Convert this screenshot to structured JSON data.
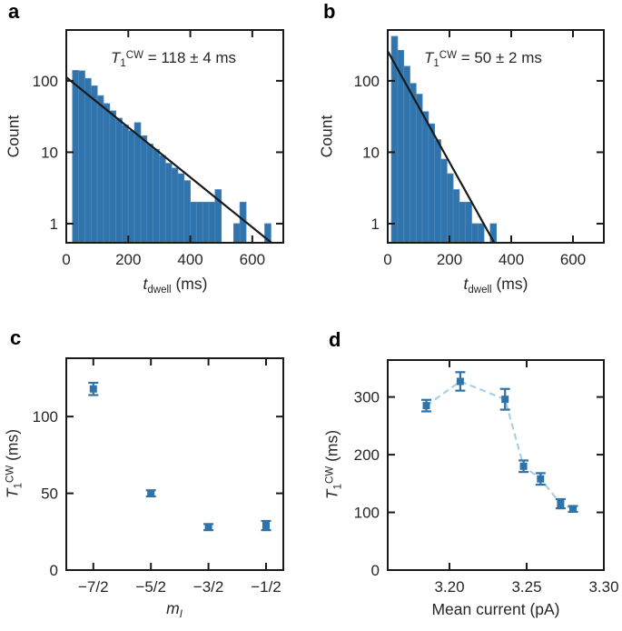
{
  "figure": {
    "background": "#ffffff",
    "panels": {
      "a": {
        "label": "a",
        "ylabel": "Count",
        "xlabel_parts": {
          "italic": "t",
          "sub": "dwell",
          "rest": " (ms)"
        },
        "annotation_parts": {
          "italic": "T",
          "sub": "1",
          "sup": "CW",
          "rest": " = 118 ± 4 ms"
        }
      },
      "b": {
        "label": "b",
        "ylabel": "Count",
        "xlabel_parts": {
          "italic": "t",
          "sub": "dwell",
          "rest": " (ms)"
        },
        "annotation_parts": {
          "italic": "T",
          "sub": "1",
          "sup": "CW",
          "rest": " = 50 ± 2 ms"
        }
      },
      "c": {
        "label": "c",
        "ylabel_parts": {
          "italic": "T",
          "sub": "1",
          "sup": "CW",
          "rest": " (ms)"
        },
        "xlabel_parts": {
          "italic": "m",
          "sub": "I"
        }
      },
      "d": {
        "label": "d",
        "ylabel_parts": {
          "italic": "T",
          "sub": "1",
          "sup": "CW",
          "rest": " (ms)"
        },
        "xlabel": "Mean current (pA)"
      }
    },
    "colors": {
      "bar_fill": "#3074ad",
      "bar_edge": "#4d87ba",
      "marker": "#2f73a8",
      "connector": "#a8cfe4",
      "fit_line": "#1a1a1a",
      "axis": "#1a1a1a",
      "tick_text": "#262626"
    }
  },
  "chart_data": [
    {
      "id": "a",
      "type": "bar",
      "yscale": "log",
      "annotation": "T1^CW = 118 ± 4 ms",
      "xlabel": "t_dwell (ms)",
      "ylabel": "Count",
      "xlim": [
        0,
        700
      ],
      "ylim": [
        0.54,
        515
      ],
      "xticks": [
        0,
        200,
        400,
        600
      ],
      "yticks": [
        1,
        10,
        100
      ],
      "ytick_labels": [
        "1",
        "10",
        "100"
      ],
      "bin_start": 20,
      "bin_width": 20,
      "counts": [
        140,
        138,
        108,
        85,
        62,
        48,
        38,
        30,
        24,
        20,
        26,
        17,
        13,
        11,
        9,
        7,
        6,
        5,
        4,
        2,
        2,
        2,
        2,
        3,
        0,
        0,
        1,
        2,
        0,
        0,
        0,
        1
      ],
      "fit": {
        "T1_ms": 118,
        "T1_err_ms": 4,
        "x": [
          0,
          662
        ],
        "y": [
          112,
          0.54
        ]
      }
    },
    {
      "id": "b",
      "type": "bar",
      "yscale": "log",
      "annotation": "T1^CW = 50 ± 2 ms",
      "xlabel": "t_dwell (ms)",
      "ylabel": "Count",
      "xlim": [
        0,
        700
      ],
      "ylim": [
        0.54,
        515
      ],
      "xticks": [
        0,
        200,
        400,
        600
      ],
      "yticks": [
        1,
        10,
        100
      ],
      "ytick_labels": [
        "1",
        "10",
        "100"
      ],
      "bin_start": 12,
      "bin_width": 20,
      "counts": [
        420,
        267,
        160,
        92,
        65,
        37,
        25,
        15,
        8,
        5,
        3,
        2,
        2,
        1,
        1,
        0,
        1
      ],
      "fit": {
        "T1_ms": 50,
        "T1_err_ms": 2,
        "x": [
          0,
          345
        ],
        "y": [
          260,
          0.54
        ]
      }
    },
    {
      "id": "c",
      "type": "scatter",
      "xlabel": "m_I",
      "ylabel": "T1^CW (ms)",
      "xlim": [
        -3.97,
        -0.2
      ],
      "ylim": [
        0,
        138
      ],
      "xticks": [
        -3.5,
        -2.5,
        -1.5,
        -0.5
      ],
      "xtick_labels": [
        "−7/2",
        "−5/2",
        "−3/2",
        "−1/2"
      ],
      "yticks": [
        0,
        50,
        100
      ],
      "ytick_labels": [
        "0",
        "50",
        "100"
      ],
      "x": [
        -3.5,
        -2.5,
        -1.5,
        -0.5
      ],
      "y": [
        118,
        50,
        28,
        29
      ],
      "yerr": [
        4,
        2,
        2,
        3
      ]
    },
    {
      "id": "d",
      "type": "scatter",
      "connect": "dashed",
      "xlabel": "Mean current (pA)",
      "ylabel": "T1^CW (ms)",
      "xlim": [
        3.16,
        3.3
      ],
      "ylim": [
        0,
        364
      ],
      "xticks": [
        3.2,
        3.25,
        3.3
      ],
      "xtick_labels": [
        "3.20",
        "3.25",
        "3.30"
      ],
      "yticks": [
        0,
        100,
        200,
        300
      ],
      "ytick_labels": [
        "0",
        "100",
        "200",
        "300"
      ],
      "x": [
        3.185,
        3.207,
        3.236,
        3.248,
        3.259,
        3.272,
        3.28
      ],
      "y": [
        285,
        327,
        296,
        180,
        158,
        115,
        106
      ],
      "yerr": [
        10,
        16,
        18,
        10,
        10,
        8,
        5
      ]
    }
  ]
}
